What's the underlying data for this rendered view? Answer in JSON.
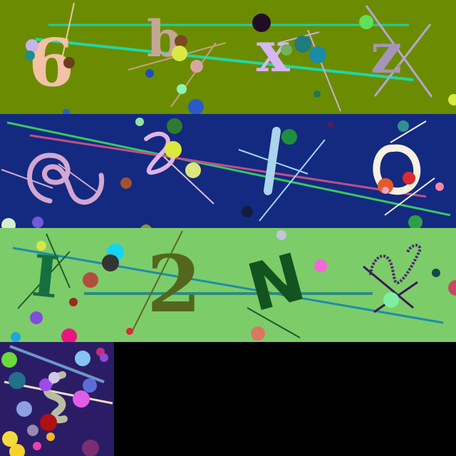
{
  "panels": [
    {
      "id": "panel-1",
      "background": "#6b8c00",
      "glyphs": [
        "6",
        "b",
        "x",
        "z"
      ]
    },
    {
      "id": "panel-2",
      "background": "#132a80",
      "glyphs": [
        "stylized-glyph",
        "stylized-glyph",
        "l",
        "o"
      ]
    },
    {
      "id": "panel-3",
      "background": "#7dcc6a",
      "glyphs": [
        "I",
        "2",
        "N",
        "stylized-glyph"
      ]
    },
    {
      "id": "panel-4",
      "background": "#2a1d66",
      "glyphs": [
        "stylized-glyph"
      ]
    }
  ],
  "empty_area": {
    "background": "#000000"
  }
}
